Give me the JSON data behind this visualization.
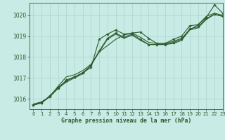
{
  "title": "Graphe pression niveau de la mer (hPa)",
  "background_color": "#c8ebe5",
  "grid_color": "#aad4cc",
  "line_color": "#2d5a2d",
  "xlim": [
    -0.5,
    23
  ],
  "ylim": [
    1015.5,
    1020.6
  ],
  "yticks": [
    1016,
    1017,
    1018,
    1019,
    1020
  ],
  "xticks": [
    0,
    1,
    2,
    3,
    4,
    5,
    6,
    7,
    8,
    9,
    10,
    11,
    12,
    13,
    14,
    15,
    16,
    17,
    18,
    19,
    20,
    21,
    22,
    23
  ],
  "series_with_markers": [
    [
      1015.7,
      1015.8,
      1016.1,
      1016.5,
      1016.9,
      1017.05,
      1017.25,
      1017.5,
      1018.85,
      1019.1,
      1019.3,
      1019.1,
      1019.15,
      1019.2,
      1018.9,
      1018.65,
      1018.65,
      1018.85,
      1019.0,
      1019.5,
      1019.55,
      1019.9,
      1020.5,
      1020.1
    ],
    [
      1015.7,
      1015.8,
      1016.15,
      1016.55,
      1016.85,
      1017.05,
      1017.25,
      1017.6,
      1018.3,
      1018.9,
      1019.15,
      1018.95,
      1019.1,
      1018.85,
      1018.6,
      1018.6,
      1018.6,
      1018.7,
      1018.85,
      1019.35,
      1019.45,
      1019.85,
      1020.05,
      1019.95
    ]
  ],
  "series_no_markers": [
    [
      1015.75,
      1015.85,
      1016.1,
      1016.6,
      1017.05,
      1017.15,
      1017.35,
      1017.65,
      1018.25,
      1018.55,
      1018.85,
      1019.05,
      1019.15,
      1018.95,
      1018.7,
      1018.65,
      1018.65,
      1018.75,
      1018.9,
      1019.3,
      1019.55,
      1019.95,
      1020.1,
      1020.0
    ],
    [
      1015.7,
      1015.85,
      1016.1,
      1016.5,
      1016.8,
      1017.0,
      1017.2,
      1017.6,
      1018.25,
      1018.85,
      1019.1,
      1018.9,
      1019.05,
      1018.8,
      1018.6,
      1018.6,
      1018.6,
      1018.65,
      1018.8,
      1019.3,
      1019.4,
      1019.8,
      1020.05,
      1019.95
    ]
  ]
}
